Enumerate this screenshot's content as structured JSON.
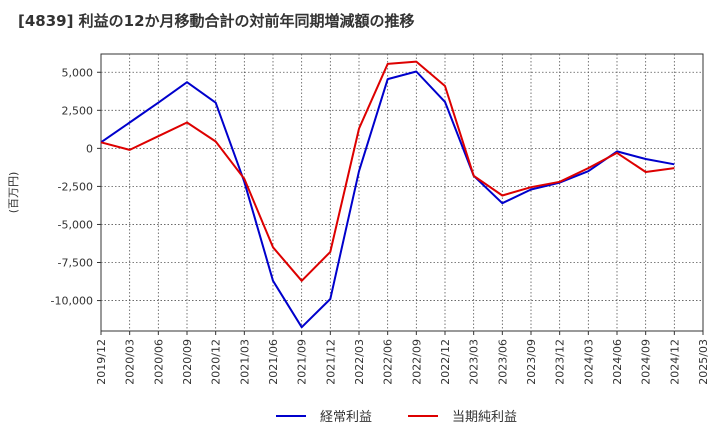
{
  "chart_data": {
    "type": "line",
    "title": "[4839]  利益の12か月移動合計の対前年同期増減額の推移",
    "ylabel": "(百万円)",
    "xlabel": "",
    "ylim": [
      -12000,
      6200
    ],
    "yticks": [
      5000,
      2500,
      0,
      -2500,
      -5000,
      -7500,
      -10000
    ],
    "ytick_labels": [
      "5,000",
      "2,500",
      "0",
      "-2,500",
      "-5,000",
      "-7,500",
      "-10,000"
    ],
    "x": [
      "2019/12",
      "2020/03",
      "2020/06",
      "2020/09",
      "2020/12",
      "2021/03",
      "2021/06",
      "2021/09",
      "2021/12",
      "2022/03",
      "2022/06",
      "2022/09",
      "2022/12",
      "2023/03",
      "2023/06",
      "2023/09",
      "2023/12",
      "2024/03",
      "2024/06",
      "2024/09",
      "2024/12",
      "2025/03"
    ],
    "series": [
      {
        "name": "経常利益",
        "color": "#0000cc",
        "values": [
          400,
          1700,
          3000,
          4350,
          3000,
          -2200,
          -8700,
          -11750,
          -9900,
          -1500,
          4550,
          5050,
          3050,
          -1800,
          -3600,
          -2700,
          -2250,
          -1500,
          -200,
          -700,
          -1050,
          null
        ]
      },
      {
        "name": "当期純利益",
        "color": "#dd0000",
        "values": [
          400,
          -100,
          800,
          1700,
          450,
          -2000,
          -6500,
          -8700,
          -6800,
          1300,
          5550,
          5700,
          4100,
          -1800,
          -3100,
          -2550,
          -2200,
          -1300,
          -300,
          -1550,
          -1300,
          null
        ]
      }
    ],
    "legend_position": "bottom-center",
    "grid": true
  }
}
